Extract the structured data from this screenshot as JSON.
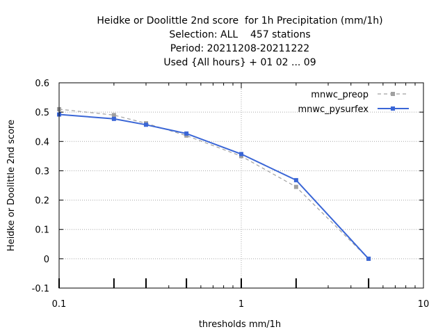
{
  "chart_data": {
    "type": "line",
    "title_lines": [
      "Heidke or Doolittle 2nd score  for 1h Precipitation (mm/1h)",
      "Selection: ALL    457 stations",
      "Period: 20211208-20211222",
      "Used {All hours} + 01 02 ... 09"
    ],
    "xlabel": "thresholds mm/1h",
    "ylabel": "Heidke or Doolittle 2nd score",
    "x_scale": "log",
    "xlim": [
      0.1,
      10
    ],
    "ylim": [
      -0.1,
      0.6
    ],
    "x_ticks": [
      {
        "value": 0.1,
        "label": "0.1"
      },
      {
        "value": 1,
        "label": "1"
      },
      {
        "value": 10,
        "label": "10"
      }
    ],
    "x_ticks_emphasized": [
      0.1,
      0.2,
      0.3,
      0.5,
      1,
      2,
      5
    ],
    "y_ticks": [
      {
        "value": -0.1,
        "label": "-0.1"
      },
      {
        "value": 0,
        "label": "0"
      },
      {
        "value": 0.1,
        "label": "0.1"
      },
      {
        "value": 0.2,
        "label": "0.2"
      },
      {
        "value": 0.3,
        "label": "0.3"
      },
      {
        "value": 0.4,
        "label": "0.4"
      },
      {
        "value": 0.5,
        "label": "0.5"
      },
      {
        "value": 0.6,
        "label": "0.6"
      }
    ],
    "grid": true,
    "legend_position": "top-right",
    "series": [
      {
        "name": "mnwc_preop",
        "color": "#a0a0a0",
        "dashed": true,
        "x": [
          0.1,
          0.2,
          0.3,
          0.5,
          1,
          2,
          5
        ],
        "y": [
          0.51,
          0.49,
          0.462,
          0.42,
          0.35,
          0.245,
          0.0
        ]
      },
      {
        "name": "mnwc_pysurfex",
        "color": "#3a66d6",
        "dashed": false,
        "x": [
          0.1,
          0.2,
          0.3,
          0.5,
          1,
          2,
          5
        ],
        "y": [
          0.492,
          0.477,
          0.457,
          0.427,
          0.357,
          0.268,
          0.0
        ]
      }
    ]
  }
}
